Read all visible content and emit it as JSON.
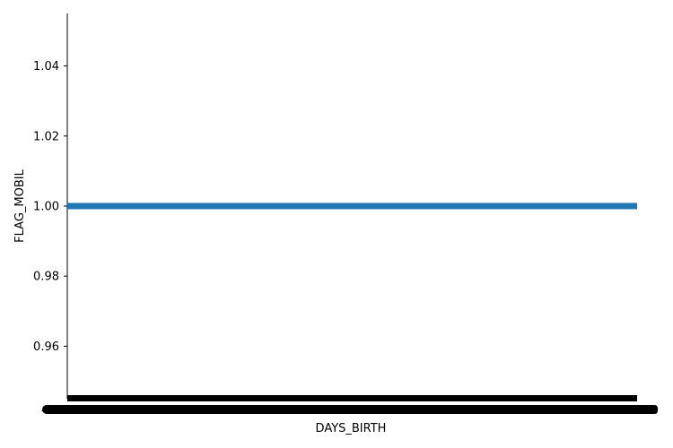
{
  "chart_data": {
    "type": "bar",
    "orientation": "horizontal",
    "xlabel": "DAYS_BIRTH",
    "ylabel": "FLAG_MOBIL",
    "ylim": [
      0.945,
      1.055
    ],
    "yticks": [
      "0.96",
      "0.98",
      "1.00",
      "1.02",
      "1.04"
    ],
    "grid": false,
    "legend": "none",
    "series": [
      {
        "color": "#1f77b4",
        "y": 1.0
      }
    ],
    "x_tick_labels_overlapping": true,
    "x_tick_edge_labels": [
      "-2",
      "0"
    ]
  }
}
